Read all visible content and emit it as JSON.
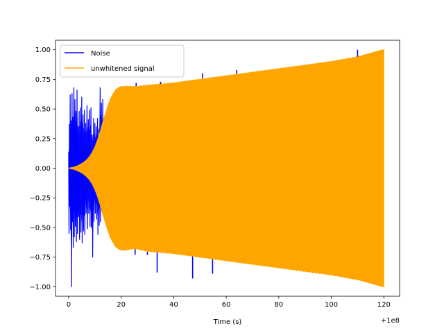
{
  "chart_data": {
    "type": "line",
    "title": "",
    "xlabel": "Time (s)",
    "ylabel": "",
    "x_offset_label": "+1e8",
    "xlim": [
      -5,
      126
    ],
    "ylim": [
      -1.08,
      1.08
    ],
    "xticks": [
      0,
      20,
      40,
      60,
      80,
      100,
      120
    ],
    "xtick_labels": [
      "0",
      "20",
      "40",
      "60",
      "80",
      "100",
      "120"
    ],
    "yticks": [
      -1.0,
      -0.75,
      -0.5,
      -0.25,
      0.0,
      0.25,
      0.5,
      0.75,
      1.0
    ],
    "ytick_labels": [
      "−1.00",
      "−0.75",
      "−0.50",
      "−0.25",
      "0.00",
      "0.25",
      "0.50",
      "0.75",
      "1.00"
    ],
    "grid": false,
    "legend_position": "top-left",
    "series": [
      {
        "name": "Noise",
        "color": "#0000ff",
        "burst_x": [
          0.0,
          0.3,
          0.6,
          1.0,
          1.3,
          1.6,
          2.0,
          2.4,
          2.8,
          3.2,
          3.6,
          4.0,
          4.5,
          5.0,
          5.5,
          6.0,
          6.5,
          7.0,
          7.5,
          8.0,
          8.5,
          9.0,
          9.5,
          10.0,
          10.5,
          11.0,
          11.5,
          12.0,
          12.5,
          13.0
        ],
        "burst_upper": [
          0.14,
          0.37,
          0.62,
          0.4,
          0.63,
          0.43,
          0.68,
          0.58,
          0.48,
          0.66,
          0.35,
          0.48,
          0.51,
          0.6,
          0.45,
          0.49,
          0.38,
          0.53,
          0.41,
          0.49,
          0.51,
          0.28,
          0.42,
          0.38,
          0.35,
          0.42,
          0.33,
          0.68,
          0.55,
          0.58
        ],
        "burst_lower": [
          -0.55,
          -0.32,
          -0.52,
          -1.0,
          -0.45,
          -0.67,
          -0.58,
          -0.49,
          -0.62,
          -0.55,
          -0.41,
          -0.6,
          -0.54,
          -0.63,
          -0.53,
          -0.56,
          -0.38,
          -0.51,
          -0.38,
          -0.49,
          -0.5,
          -0.75,
          -0.45,
          -0.38,
          -0.43,
          -0.56,
          -0.48,
          -0.45,
          -0.34,
          -0.38
        ],
        "upper_spikes": [
          [
            16,
            0.53
          ],
          [
            17.8,
            0.42
          ],
          [
            25.7,
            0.72
          ],
          [
            35,
            0.73
          ],
          [
            51,
            0.8
          ],
          [
            64,
            0.83
          ],
          [
            110,
            1.0
          ]
        ],
        "lower_spikes": [
          [
            25.3,
            -0.73
          ],
          [
            30,
            -0.73
          ],
          [
            33.7,
            -0.88
          ],
          [
            47.2,
            -0.93
          ],
          [
            54.8,
            -0.89
          ],
          [
            60.3,
            -0.75
          ],
          [
            64,
            -0.75
          ],
          [
            80,
            -0.78
          ],
          [
            90,
            -0.8
          ],
          [
            100,
            -0.84
          ],
          [
            117,
            -0.9
          ]
        ]
      },
      {
        "name": "unwhitened signal",
        "color": "#ffa500",
        "envelope_x": [
          0,
          1,
          2,
          3,
          4,
          5,
          6,
          7,
          8,
          9,
          10,
          11,
          12,
          13,
          14,
          15,
          16,
          17,
          18,
          19,
          20,
          22,
          24,
          26,
          30,
          40,
          50,
          60,
          70,
          80,
          90,
          100,
          110,
          115,
          118,
          120
        ],
        "envelope_upper": [
          0.0,
          0.005,
          0.01,
          0.018,
          0.028,
          0.04,
          0.055,
          0.075,
          0.1,
          0.135,
          0.18,
          0.24,
          0.31,
          0.39,
          0.46,
          0.53,
          0.59,
          0.63,
          0.665,
          0.68,
          0.69,
          0.69,
          0.69,
          0.69,
          0.7,
          0.72,
          0.75,
          0.78,
          0.81,
          0.84,
          0.87,
          0.9,
          0.94,
          0.97,
          0.99,
          1.0
        ],
        "envelope_lower": [
          0.0,
          -0.005,
          -0.01,
          -0.018,
          -0.028,
          -0.04,
          -0.055,
          -0.075,
          -0.1,
          -0.135,
          -0.18,
          -0.24,
          -0.31,
          -0.39,
          -0.46,
          -0.53,
          -0.59,
          -0.63,
          -0.665,
          -0.68,
          -0.69,
          -0.69,
          -0.68,
          -0.68,
          -0.7,
          -0.72,
          -0.75,
          -0.78,
          -0.81,
          -0.84,
          -0.87,
          -0.9,
          -0.94,
          -0.97,
          -0.99,
          -1.0
        ],
        "end_dip_x": [
          119.2,
          119.5,
          119.8
        ],
        "end_dip_upper": [
          0.55,
          0.9,
          0.45
        ],
        "end_dip_lower": [
          -0.6,
          -0.85,
          -0.5
        ]
      }
    ]
  }
}
